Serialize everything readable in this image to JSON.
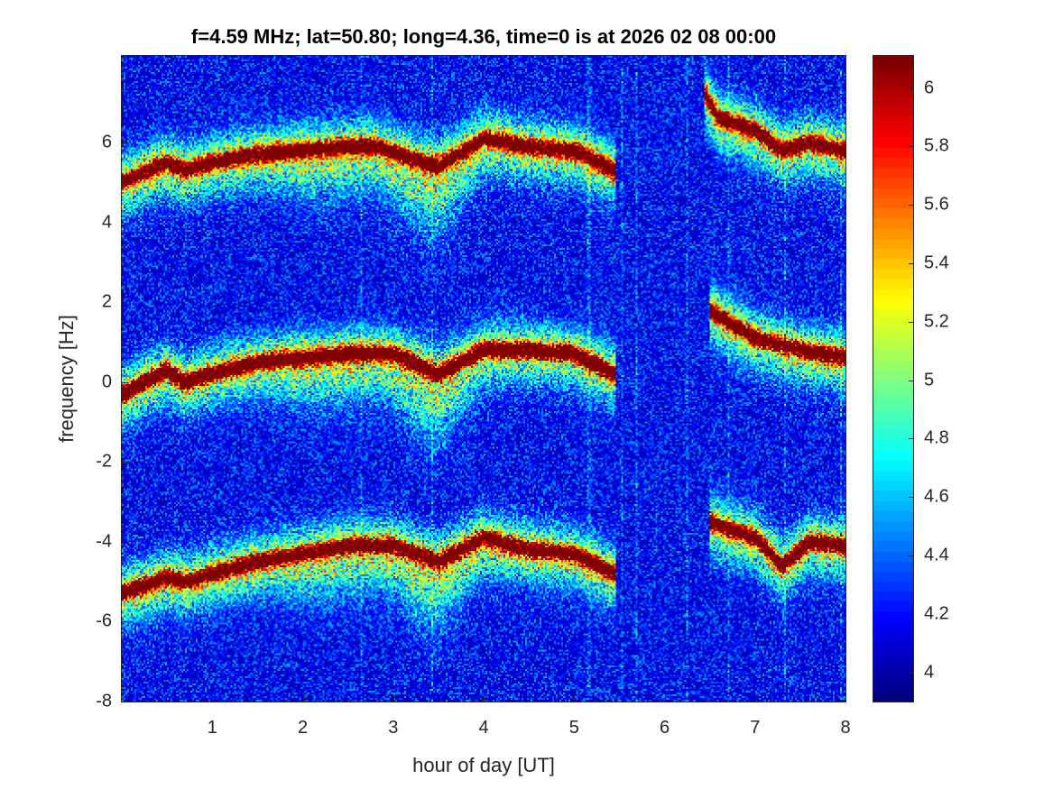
{
  "chart_data": {
    "type": "heatmap",
    "title": "f=4.59 MHz;  lat=50.80; long=4.36, time=0 is at 2026 02 08 00:00",
    "xlabel": "hour of day [UT]",
    "ylabel": "frequency [Hz]",
    "xlim": [
      0,
      8
    ],
    "ylim": [
      -8,
      8.17
    ],
    "xticks": [
      1,
      2,
      3,
      4,
      5,
      6,
      7,
      8
    ],
    "yticks": [
      -8,
      -6,
      -4,
      -2,
      0,
      2,
      4,
      6
    ],
    "colormap": "jet",
    "clim": [
      3.9,
      6.11
    ],
    "colorbar_ticks": [
      "4",
      "4.2",
      "4.4",
      "4.6",
      "4.8",
      "5",
      "5.2",
      "5.4",
      "5.6",
      "5.8",
      "6"
    ],
    "background_level": 4.2,
    "traces": [
      {
        "name": "upper echo, part 1",
        "peak": 6.0,
        "points": [
          [
            0,
            5.0
          ],
          [
            0.5,
            5.5
          ],
          [
            0.7,
            5.3
          ],
          [
            1,
            5.5
          ],
          [
            1.5,
            5.7
          ],
          [
            2,
            5.8
          ],
          [
            2.5,
            5.9
          ],
          [
            2.8,
            5.9
          ],
          [
            3.2,
            5.6
          ],
          [
            3.5,
            5.4
          ],
          [
            3.8,
            5.8
          ],
          [
            4,
            6.1
          ],
          [
            4.5,
            5.9
          ],
          [
            5,
            5.8
          ],
          [
            5.45,
            5.3
          ]
        ]
      },
      {
        "name": "upper echo, part 2",
        "peak": 6.0,
        "points": [
          [
            6.45,
            7.2
          ],
          [
            6.6,
            6.6
          ],
          [
            7,
            6.3
          ],
          [
            7.3,
            5.8
          ],
          [
            7.6,
            6.0
          ],
          [
            8,
            5.8
          ]
        ]
      },
      {
        "name": "middle echo, part 1",
        "peak": 6.1,
        "points": [
          [
            0,
            -0.3
          ],
          [
            0.5,
            0.3
          ],
          [
            0.7,
            0.0
          ],
          [
            1,
            0.2
          ],
          [
            1.5,
            0.5
          ],
          [
            2,
            0.6
          ],
          [
            2.5,
            0.7
          ],
          [
            3,
            0.7
          ],
          [
            3.5,
            0.2
          ],
          [
            4,
            0.8
          ],
          [
            4.5,
            0.8
          ],
          [
            5,
            0.7
          ],
          [
            5.45,
            0.2
          ]
        ]
      },
      {
        "name": "middle echo, part 2",
        "peak": 6.0,
        "points": [
          [
            6.5,
            1.8
          ],
          [
            7,
            1.1
          ],
          [
            7.5,
            0.8
          ],
          [
            8,
            0.6
          ]
        ]
      },
      {
        "name": "lower echo, part 1",
        "peak": 6.0,
        "points": [
          [
            0,
            -5.3
          ],
          [
            0.5,
            -4.9
          ],
          [
            0.7,
            -5.0
          ],
          [
            1,
            -4.8
          ],
          [
            1.5,
            -4.5
          ],
          [
            2,
            -4.3
          ],
          [
            2.5,
            -4.1
          ],
          [
            3,
            -4.1
          ],
          [
            3.5,
            -4.5
          ],
          [
            4,
            -3.9
          ],
          [
            4.5,
            -4.2
          ],
          [
            5,
            -4.3
          ],
          [
            5.45,
            -4.8
          ]
        ]
      },
      {
        "name": "lower echo, part 2",
        "peak": 6.0,
        "points": [
          [
            6.5,
            -3.5
          ],
          [
            7,
            -3.9
          ],
          [
            7.3,
            -4.6
          ],
          [
            7.6,
            -4.0
          ],
          [
            8,
            -4.1
          ]
        ]
      }
    ]
  }
}
